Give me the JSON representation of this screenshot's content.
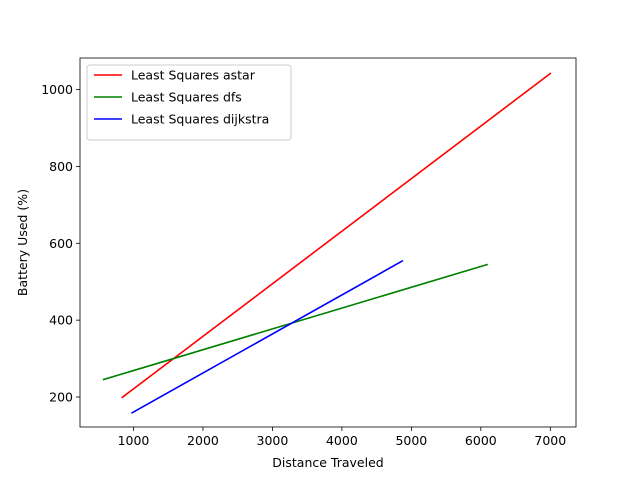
{
  "chart_data": {
    "type": "line",
    "title": "",
    "xlabel": "Distance Traveled",
    "ylabel": "Battery Used (%)",
    "xlim": [
      230,
      7370
    ],
    "ylim": [
      122,
      1082
    ],
    "xticks": [
      1000,
      2000,
      3000,
      4000,
      5000,
      6000,
      7000
    ],
    "yticks": [
      200,
      400,
      600,
      800,
      1000
    ],
    "legend_position": "top-left",
    "grid": false,
    "series": [
      {
        "name": "Least Squares astar",
        "color": "#ff0000",
        "x": [
          830,
          7010
        ],
        "y": [
          198,
          1043
        ]
      },
      {
        "name": "Least Squares dfs",
        "color": "#008000",
        "x": [
          560,
          6100
        ],
        "y": [
          245,
          545
        ]
      },
      {
        "name": "Least Squares dijkstra",
        "color": "#0000ff",
        "x": [
          970,
          4880
        ],
        "y": [
          158,
          555
        ]
      }
    ]
  }
}
